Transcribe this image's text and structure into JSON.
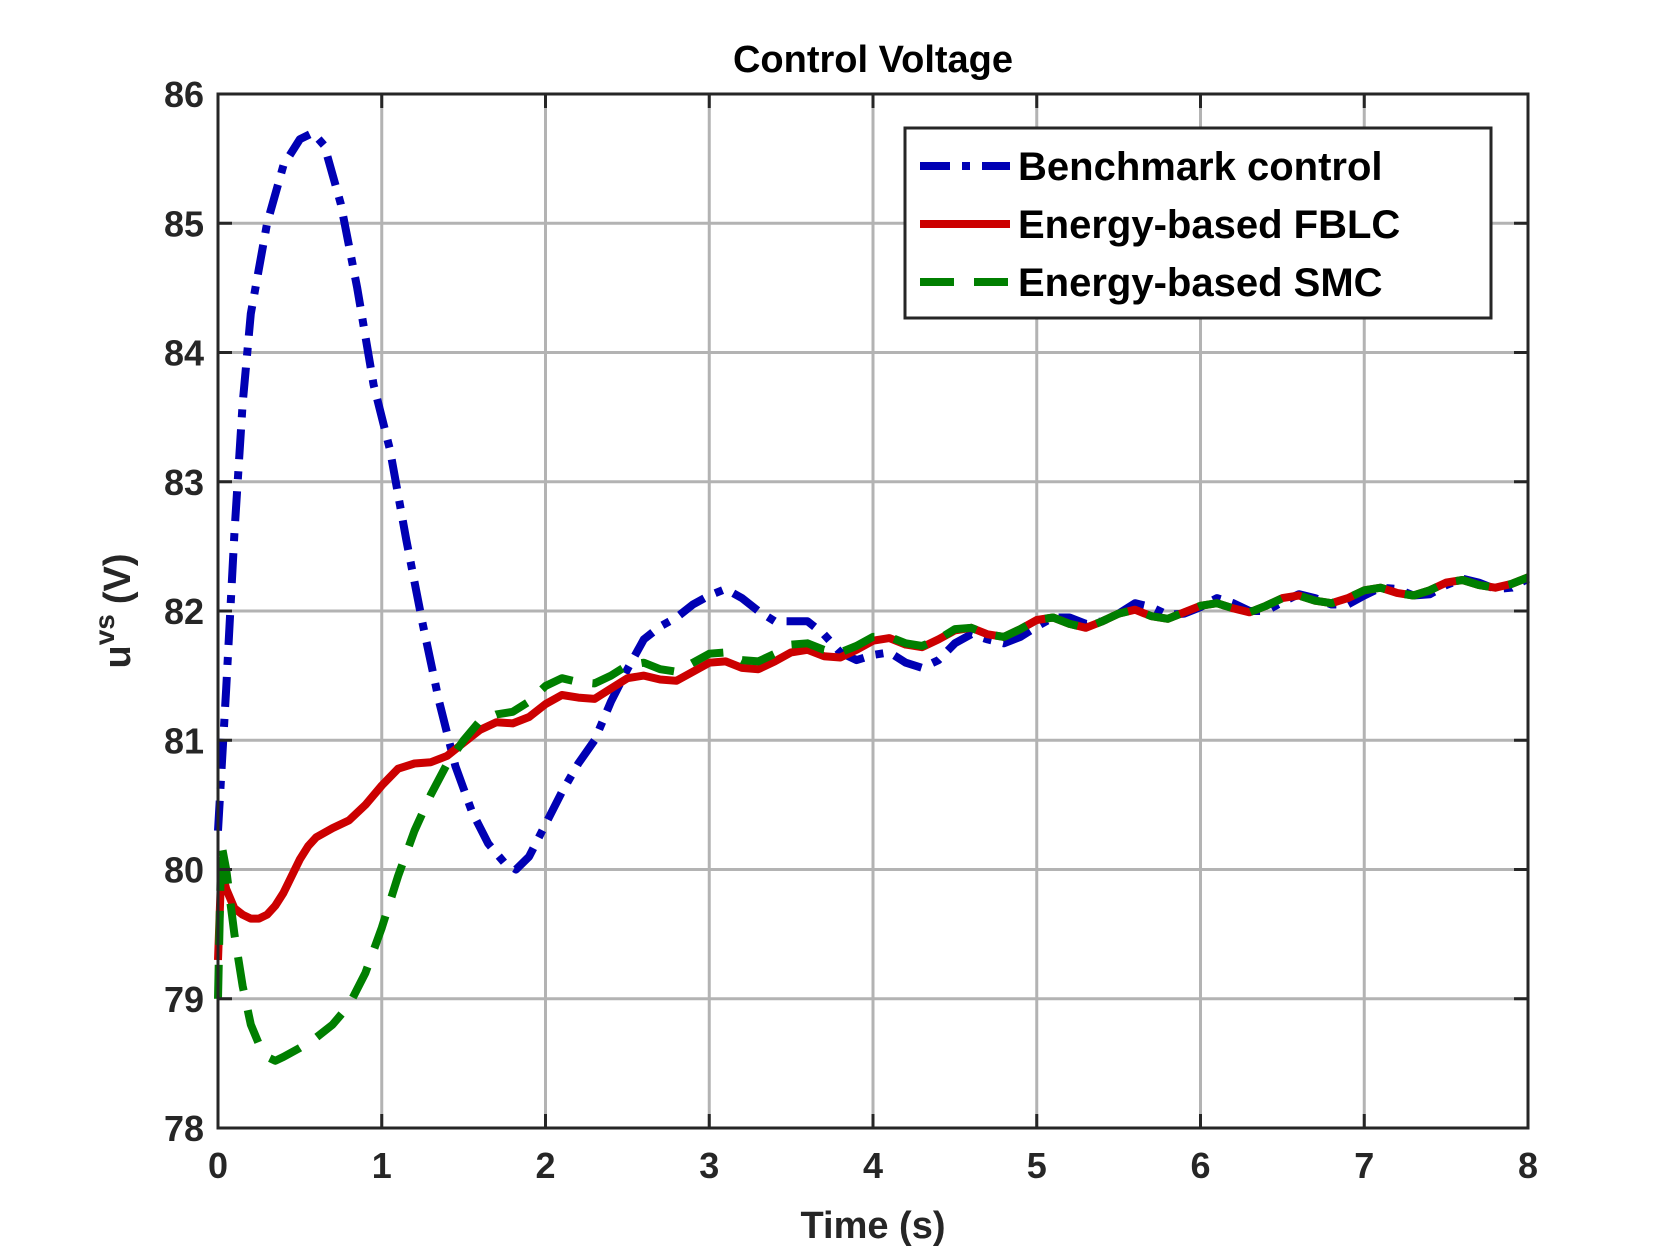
{
  "chart_data": {
    "type": "line",
    "title": "Control Voltage",
    "xlabel": "Time (s)",
    "ylabel_main": "u",
    "ylabel_superscript": "vs",
    "ylabel_unit": "(V)",
    "xlim": [
      0,
      8
    ],
    "ylim": [
      78,
      86
    ],
    "xticks": [
      0,
      1,
      2,
      3,
      4,
      5,
      6,
      7,
      8
    ],
    "yticks": [
      78,
      79,
      80,
      81,
      82,
      83,
      84,
      85,
      86
    ],
    "grid": true,
    "legend_position": "top-right",
    "series": [
      {
        "name": "Benchmark control",
        "color": "#0000b4",
        "style": "dash-dot",
        "points": [
          [
            0.0,
            80.3
          ],
          [
            0.05,
            81.4
          ],
          [
            0.1,
            82.6
          ],
          [
            0.15,
            83.6
          ],
          [
            0.2,
            84.3
          ],
          [
            0.3,
            85.0
          ],
          [
            0.4,
            85.45
          ],
          [
            0.5,
            85.65
          ],
          [
            0.58,
            85.7
          ],
          [
            0.65,
            85.6
          ],
          [
            0.75,
            85.15
          ],
          [
            0.85,
            84.5
          ],
          [
            0.95,
            83.75
          ],
          [
            1.05,
            83.25
          ],
          [
            1.15,
            82.55
          ],
          [
            1.25,
            81.9
          ],
          [
            1.35,
            81.3
          ],
          [
            1.45,
            80.8
          ],
          [
            1.55,
            80.45
          ],
          [
            1.65,
            80.2
          ],
          [
            1.75,
            80.05
          ],
          [
            1.82,
            80.0
          ],
          [
            1.9,
            80.1
          ],
          [
            2.0,
            80.35
          ],
          [
            2.1,
            80.6
          ],
          [
            2.2,
            80.82
          ],
          [
            2.3,
            81.0
          ],
          [
            2.4,
            81.3
          ],
          [
            2.5,
            81.55
          ],
          [
            2.6,
            81.78
          ],
          [
            2.7,
            81.88
          ],
          [
            2.8,
            81.95
          ],
          [
            2.9,
            82.05
          ],
          [
            3.0,
            82.12
          ],
          [
            3.1,
            82.17
          ],
          [
            3.2,
            82.1
          ],
          [
            3.3,
            82.0
          ],
          [
            3.4,
            81.92
          ],
          [
            3.5,
            81.92
          ],
          [
            3.6,
            81.92
          ],
          [
            3.7,
            81.82
          ],
          [
            3.8,
            81.68
          ],
          [
            3.9,
            81.62
          ],
          [
            4.0,
            81.66
          ],
          [
            4.1,
            81.68
          ],
          [
            4.2,
            81.6
          ],
          [
            4.3,
            81.56
          ],
          [
            4.4,
            81.62
          ],
          [
            4.5,
            81.75
          ],
          [
            4.6,
            81.82
          ],
          [
            4.7,
            81.78
          ],
          [
            4.8,
            81.75
          ],
          [
            4.9,
            81.8
          ],
          [
            5.0,
            81.88
          ],
          [
            5.1,
            81.95
          ],
          [
            5.2,
            81.95
          ],
          [
            5.3,
            81.9
          ],
          [
            5.4,
            81.92
          ],
          [
            5.5,
            81.98
          ],
          [
            5.6,
            82.06
          ],
          [
            5.7,
            82.03
          ],
          [
            5.8,
            81.97
          ],
          [
            5.9,
            81.98
          ],
          [
            6.0,
            82.03
          ],
          [
            6.1,
            82.1
          ],
          [
            6.2,
            82.06
          ],
          [
            6.3,
            82.0
          ],
          [
            6.4,
            82.0
          ],
          [
            6.5,
            82.07
          ],
          [
            6.6,
            82.13
          ],
          [
            6.7,
            82.1
          ],
          [
            6.8,
            82.05
          ],
          [
            6.9,
            82.05
          ],
          [
            7.0,
            82.12
          ],
          [
            7.1,
            82.18
          ],
          [
            7.2,
            82.17
          ],
          [
            7.3,
            82.12
          ],
          [
            7.4,
            82.13
          ],
          [
            7.5,
            82.2
          ],
          [
            7.6,
            82.25
          ],
          [
            7.7,
            82.22
          ],
          [
            7.8,
            82.17
          ],
          [
            7.9,
            82.18
          ],
          [
            8.0,
            82.25
          ]
        ]
      },
      {
        "name": "Energy-based FBLC",
        "color": "#cc0000",
        "style": "solid",
        "points": [
          [
            0.0,
            79.3
          ],
          [
            0.02,
            80.0
          ],
          [
            0.05,
            79.85
          ],
          [
            0.1,
            79.7
          ],
          [
            0.15,
            79.65
          ],
          [
            0.2,
            79.62
          ],
          [
            0.25,
            79.62
          ],
          [
            0.3,
            79.65
          ],
          [
            0.35,
            79.72
          ],
          [
            0.4,
            79.82
          ],
          [
            0.45,
            79.95
          ],
          [
            0.5,
            80.08
          ],
          [
            0.55,
            80.18
          ],
          [
            0.6,
            80.25
          ],
          [
            0.7,
            80.32
          ],
          [
            0.8,
            80.38
          ],
          [
            0.9,
            80.5
          ],
          [
            1.0,
            80.65
          ],
          [
            1.1,
            80.78
          ],
          [
            1.2,
            80.82
          ],
          [
            1.3,
            80.83
          ],
          [
            1.4,
            80.88
          ],
          [
            1.5,
            80.98
          ],
          [
            1.6,
            81.08
          ],
          [
            1.7,
            81.14
          ],
          [
            1.8,
            81.13
          ],
          [
            1.9,
            81.18
          ],
          [
            2.0,
            81.28
          ],
          [
            2.1,
            81.35
          ],
          [
            2.2,
            81.33
          ],
          [
            2.3,
            81.32
          ],
          [
            2.4,
            81.4
          ],
          [
            2.5,
            81.48
          ],
          [
            2.6,
            81.5
          ],
          [
            2.7,
            81.47
          ],
          [
            2.8,
            81.46
          ],
          [
            2.9,
            81.53
          ],
          [
            3.0,
            81.6
          ],
          [
            3.1,
            81.61
          ],
          [
            3.2,
            81.56
          ],
          [
            3.3,
            81.55
          ],
          [
            3.4,
            81.61
          ],
          [
            3.5,
            81.68
          ],
          [
            3.6,
            81.7
          ],
          [
            3.7,
            81.65
          ],
          [
            3.8,
            81.64
          ],
          [
            3.9,
            81.7
          ],
          [
            4.0,
            81.77
          ],
          [
            4.1,
            81.79
          ],
          [
            4.2,
            81.74
          ],
          [
            4.3,
            81.72
          ],
          [
            4.4,
            81.78
          ],
          [
            4.5,
            81.85
          ],
          [
            4.6,
            81.87
          ],
          [
            4.7,
            81.82
          ],
          [
            4.8,
            81.8
          ],
          [
            4.9,
            81.86
          ],
          [
            5.0,
            81.93
          ],
          [
            5.1,
            81.95
          ],
          [
            5.2,
            81.9
          ],
          [
            5.3,
            81.87
          ],
          [
            5.4,
            81.92
          ],
          [
            5.5,
            81.98
          ],
          [
            5.6,
            82.01
          ],
          [
            5.7,
            81.96
          ],
          [
            5.8,
            81.94
          ],
          [
            5.9,
            81.99
          ],
          [
            6.0,
            82.04
          ],
          [
            6.1,
            82.06
          ],
          [
            6.2,
            82.02
          ],
          [
            6.3,
            81.99
          ],
          [
            6.4,
            82.04
          ],
          [
            6.5,
            82.1
          ],
          [
            6.6,
            82.12
          ],
          [
            6.7,
            82.08
          ],
          [
            6.8,
            82.06
          ],
          [
            6.9,
            82.1
          ],
          [
            7.0,
            82.16
          ],
          [
            7.1,
            82.18
          ],
          [
            7.2,
            82.14
          ],
          [
            7.3,
            82.12
          ],
          [
            7.4,
            82.16
          ],
          [
            7.5,
            82.22
          ],
          [
            7.6,
            82.24
          ],
          [
            7.7,
            82.2
          ],
          [
            7.8,
            82.18
          ],
          [
            7.9,
            82.21
          ],
          [
            8.0,
            82.26
          ]
        ]
      },
      {
        "name": "Energy-based SMC",
        "color": "#007f00",
        "style": "dashed",
        "points": [
          [
            0.0,
            79.0
          ],
          [
            0.02,
            80.2
          ],
          [
            0.05,
            80.0
          ],
          [
            0.1,
            79.5
          ],
          [
            0.15,
            79.1
          ],
          [
            0.2,
            78.8
          ],
          [
            0.25,
            78.65
          ],
          [
            0.3,
            78.55
          ],
          [
            0.35,
            78.52
          ],
          [
            0.4,
            78.55
          ],
          [
            0.5,
            78.62
          ],
          [
            0.6,
            78.7
          ],
          [
            0.7,
            78.8
          ],
          [
            0.8,
            78.95
          ],
          [
            0.9,
            79.2
          ],
          [
            1.0,
            79.55
          ],
          [
            1.1,
            79.95
          ],
          [
            1.2,
            80.3
          ],
          [
            1.3,
            80.58
          ],
          [
            1.4,
            80.82
          ],
          [
            1.5,
            81.0
          ],
          [
            1.6,
            81.15
          ],
          [
            1.7,
            81.2
          ],
          [
            1.8,
            81.22
          ],
          [
            1.9,
            81.3
          ],
          [
            2.0,
            81.42
          ],
          [
            2.1,
            81.48
          ],
          [
            2.2,
            81.45
          ],
          [
            2.3,
            81.44
          ],
          [
            2.4,
            81.5
          ],
          [
            2.5,
            81.58
          ],
          [
            2.6,
            81.6
          ],
          [
            2.7,
            81.55
          ],
          [
            2.8,
            81.53
          ],
          [
            2.9,
            81.6
          ],
          [
            3.0,
            81.67
          ],
          [
            3.1,
            81.68
          ],
          [
            3.2,
            81.62
          ],
          [
            3.3,
            81.61
          ],
          [
            3.4,
            81.67
          ],
          [
            3.5,
            81.74
          ],
          [
            3.6,
            81.75
          ],
          [
            3.7,
            81.7
          ],
          [
            3.8,
            81.68
          ],
          [
            3.9,
            81.73
          ],
          [
            4.0,
            81.8
          ],
          [
            4.1,
            81.8
          ],
          [
            4.2,
            81.75
          ],
          [
            4.3,
            81.73
          ],
          [
            4.4,
            81.78
          ],
          [
            4.5,
            81.86
          ],
          [
            4.6,
            81.87
          ],
          [
            4.7,
            81.82
          ],
          [
            4.8,
            81.8
          ],
          [
            4.9,
            81.86
          ],
          [
            5.0,
            81.93
          ],
          [
            5.1,
            81.95
          ],
          [
            5.2,
            81.9
          ],
          [
            5.3,
            81.87
          ],
          [
            5.4,
            81.92
          ],
          [
            5.5,
            81.98
          ],
          [
            5.6,
            82.01
          ],
          [
            5.7,
            81.96
          ],
          [
            5.8,
            81.94
          ],
          [
            5.9,
            81.99
          ],
          [
            6.0,
            82.04
          ],
          [
            6.1,
            82.06
          ],
          [
            6.2,
            82.02
          ],
          [
            6.3,
            81.99
          ],
          [
            6.4,
            82.04
          ],
          [
            6.5,
            82.1
          ],
          [
            6.6,
            82.12
          ],
          [
            6.7,
            82.08
          ],
          [
            6.8,
            82.06
          ],
          [
            6.9,
            82.1
          ],
          [
            7.0,
            82.16
          ],
          [
            7.1,
            82.18
          ],
          [
            7.2,
            82.14
          ],
          [
            7.3,
            82.12
          ],
          [
            7.4,
            82.16
          ],
          [
            7.5,
            82.22
          ],
          [
            7.6,
            82.24
          ],
          [
            7.7,
            82.2
          ],
          [
            7.8,
            82.18
          ],
          [
            7.9,
            82.21
          ],
          [
            8.0,
            82.26
          ]
        ]
      }
    ]
  }
}
